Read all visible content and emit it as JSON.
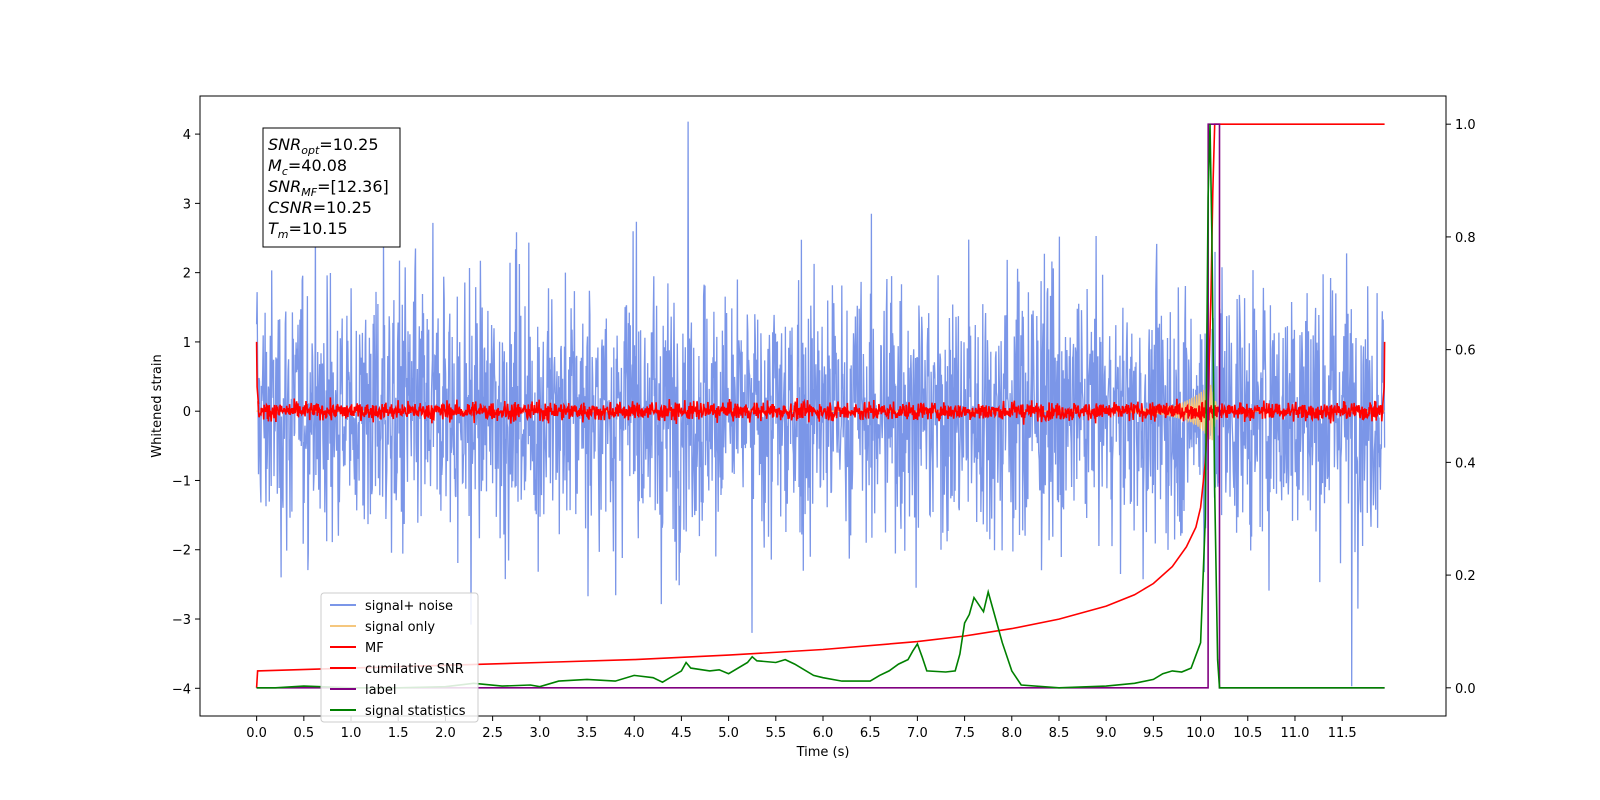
{
  "chart_data": {
    "type": "line",
    "xlabel": "Time (s)",
    "ylabel": "Whitened strain",
    "xlim": [
      -0.6,
      12.6
    ],
    "ylim": [
      -4.4,
      4.55
    ],
    "y2lim": [
      -0.05,
      1.05
    ],
    "xticks": [
      0.0,
      0.5,
      1.0,
      1.5,
      2.0,
      2.5,
      3.0,
      3.5,
      4.0,
      4.5,
      5.0,
      5.5,
      6.0,
      6.5,
      7.0,
      7.5,
      8.0,
      8.5,
      9.0,
      9.5,
      10.0,
      10.5,
      11.0,
      11.5
    ],
    "xtick_labels": [
      "0.0",
      "0.5",
      "1.0",
      "1.5",
      "2.0",
      "2.5",
      "3.0",
      "3.5",
      "4.0",
      "4.5",
      "5.0",
      "5.5",
      "6.0",
      "6.5",
      "7.0",
      "7.5",
      "8.0",
      "8.5",
      "9.0",
      "9.5",
      "10.0",
      "10.5",
      "11.0",
      "11.5"
    ],
    "yticks": [
      -4,
      -3,
      -2,
      -1,
      0,
      1,
      2,
      3,
      4
    ],
    "ytick_labels": [
      "−4",
      "−3",
      "−2",
      "−1",
      "0",
      "1",
      "2",
      "3",
      "4"
    ],
    "y2ticks": [
      0.0,
      0.2,
      0.4,
      0.6,
      0.8,
      1.0
    ],
    "y2tick_labels": [
      "0.0",
      "0.2",
      "0.4",
      "0.6",
      "0.8",
      "1.0"
    ],
    "grid": false,
    "legend_position": "lower-left",
    "info_box": [
      {
        "base": "SNR",
        "sub": "opt",
        "value": "=10.25"
      },
      {
        "base": "M",
        "sub": "c",
        "value": "=40.08"
      },
      {
        "base": "SNR",
        "sub": "MF",
        "value": "=[12.36]"
      },
      {
        "base": "CSNR",
        "sub": "",
        "value": "=10.25"
      },
      {
        "base": "T",
        "sub": "m",
        "value": "=10.15"
      }
    ],
    "series": [
      {
        "name": "signal+ noise",
        "axis": "left",
        "color": "#7b96e8",
        "noise_amplitude": 1.0,
        "outliers": [
          [
            4.57,
            4.18
          ],
          [
            2.27,
            -3.08
          ],
          [
            11.6,
            -3.97
          ],
          [
            5.25,
            -3.2
          ]
        ]
      },
      {
        "name": "signal only",
        "axis": "left",
        "color": "#f5c77e",
        "chirp_peak_time": 10.12,
        "chirp_peak_amplitude": 0.45
      },
      {
        "name": "MF",
        "axis": "left",
        "color": "#ff0000",
        "noise_amplitude": 0.07,
        "start_value": 1.0,
        "end_value": 1.0
      },
      {
        "name": "cumilative SNR",
        "axis": "right",
        "color": "#ff0000",
        "x": [
          0.0,
          0.01,
          1.0,
          2.0,
          3.0,
          4.0,
          5.0,
          6.0,
          7.0,
          7.5,
          8.0,
          8.5,
          9.0,
          9.3,
          9.5,
          9.7,
          9.85,
          9.95,
          10.0,
          10.05,
          10.08,
          10.11,
          10.13,
          10.15,
          11.95
        ],
        "y": [
          0.0,
          0.03,
          0.035,
          0.04,
          0.045,
          0.05,
          0.058,
          0.068,
          0.082,
          0.092,
          0.105,
          0.122,
          0.145,
          0.165,
          0.185,
          0.215,
          0.25,
          0.285,
          0.32,
          0.4,
          0.5,
          0.7,
          0.88,
          1.0,
          1.0
        ]
      },
      {
        "name": "label",
        "axis": "right",
        "color": "#800080",
        "x": [
          0.0,
          10.08,
          10.081,
          10.2,
          10.201,
          11.95
        ],
        "y": [
          0.0,
          0.0,
          1.0,
          1.0,
          0.0,
          0.0
        ]
      },
      {
        "name": "signal statistics",
        "axis": "right",
        "color": "#008000",
        "x": [
          0.0,
          0.2,
          0.5,
          1.0,
          1.5,
          2.0,
          2.3,
          2.6,
          2.9,
          3.0,
          3.2,
          3.5,
          3.8,
          4.0,
          4.2,
          4.3,
          4.4,
          4.5,
          4.55,
          4.6,
          4.8,
          4.9,
          5.0,
          5.2,
          5.25,
          5.3,
          5.5,
          5.6,
          5.7,
          5.9,
          6.0,
          6.2,
          6.5,
          6.6,
          6.7,
          6.8,
          6.9,
          6.95,
          7.0,
          7.05,
          7.1,
          7.3,
          7.4,
          7.45,
          7.5,
          7.55,
          7.6,
          7.7,
          7.75,
          7.8,
          7.9,
          8.0,
          8.1,
          8.5,
          9.0,
          9.3,
          9.5,
          9.6,
          9.7,
          9.8,
          9.9,
          10.0,
          10.05,
          10.08,
          10.1,
          10.12,
          10.15,
          10.18,
          10.2,
          10.22,
          10.3,
          11.95
        ],
        "y": [
          0.0,
          0.0,
          0.003,
          0.0,
          0.0,
          0.002,
          0.008,
          0.003,
          0.005,
          0.002,
          0.012,
          0.015,
          0.012,
          0.022,
          0.018,
          0.01,
          0.02,
          0.03,
          0.045,
          0.035,
          0.03,
          0.032,
          0.025,
          0.045,
          0.055,
          0.048,
          0.045,
          0.05,
          0.042,
          0.022,
          0.018,
          0.012,
          0.012,
          0.022,
          0.03,
          0.042,
          0.05,
          0.065,
          0.078,
          0.055,
          0.03,
          0.028,
          0.03,
          0.06,
          0.115,
          0.13,
          0.16,
          0.135,
          0.17,
          0.14,
          0.08,
          0.03,
          0.005,
          0.0,
          0.003,
          0.008,
          0.015,
          0.025,
          0.03,
          0.028,
          0.035,
          0.08,
          0.3,
          0.87,
          1.0,
          0.8,
          0.35,
          0.05,
          0.0,
          0.0,
          0.0,
          0.0
        ]
      }
    ]
  }
}
